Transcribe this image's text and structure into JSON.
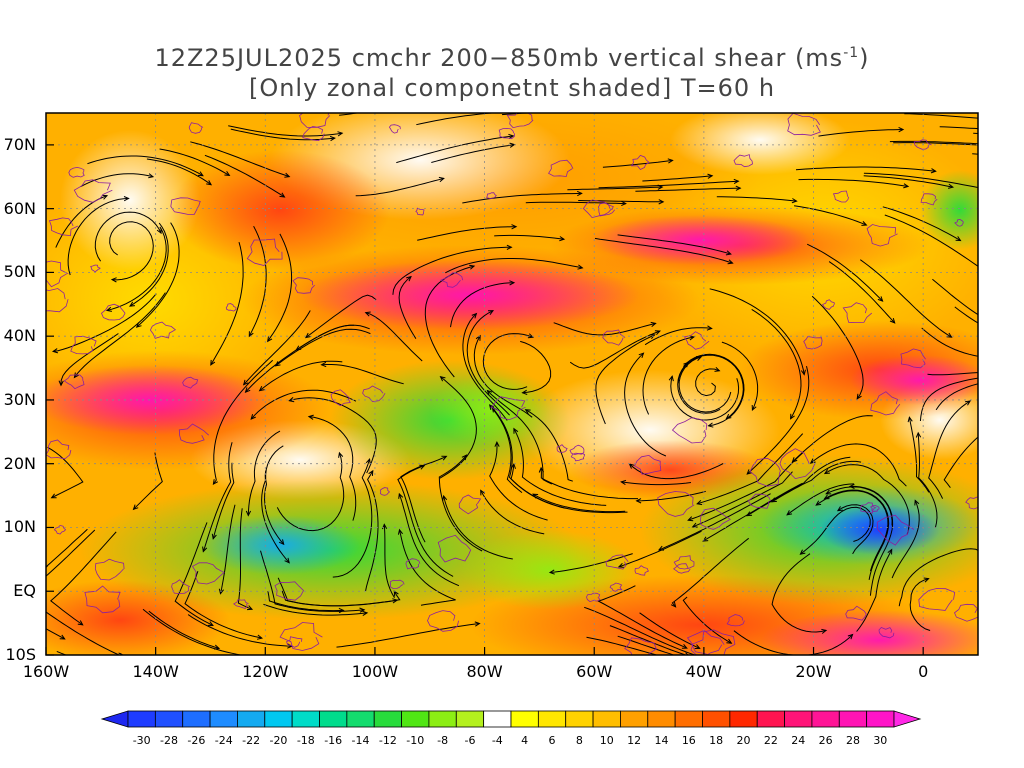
{
  "title": {
    "line1_prefix": "12Z25JUL2025 cmchr 200−850mb vertical shear (ms",
    "line1_sup": "-1",
    "line1_suffix": ")",
    "line2": "[Only zonal componetnt shaded] T=60 h"
  },
  "map": {
    "lon_range": [
      -160,
      10
    ],
    "lat_range": [
      -10,
      75
    ],
    "lat_labels": [
      "70N",
      "60N",
      "50N",
      "40N",
      "30N",
      "20N",
      "10N",
      "EQ",
      "10S"
    ],
    "lat_values": [
      70,
      60,
      50,
      40,
      30,
      20,
      10,
      0,
      -10
    ],
    "lon_labels": [
      "160W",
      "140W",
      "120W",
      "100W",
      "80W",
      "60W",
      "40W",
      "20W",
      "0"
    ],
    "lon_values": [
      -160,
      -140,
      -120,
      -100,
      -80,
      -60,
      -40,
      -20,
      0
    ],
    "shaded_field": "zonal component of 200-850mb vertical shear",
    "overlay": "streamlines of shear vector with arrowheads; purple contours",
    "grid": "dotted lat/lon lines"
  },
  "colorbar": {
    "labels": [
      "-30",
      "-28",
      "-26",
      "-24",
      "-22",
      "-20",
      "-18",
      "-16",
      "-14",
      "-12",
      "-10",
      "-8",
      "-6",
      "-4",
      "4",
      "6",
      "8",
      "10",
      "12",
      "14",
      "16",
      "18",
      "20",
      "22",
      "24",
      "26",
      "28",
      "30"
    ],
    "colors": [
      "#1e3cff",
      "#2050ff",
      "#1e6eff",
      "#1e8cff",
      "#14aaf0",
      "#00c8f0",
      "#00dcc8",
      "#00dc8c",
      "#14dc6e",
      "#28dc3c",
      "#50e614",
      "#8cee14",
      "#b4f01e",
      "#ffffff",
      "#ffff00",
      "#ffe600",
      "#ffd200",
      "#ffbe00",
      "#ffa000",
      "#ff8c00",
      "#ff6e00",
      "#ff5000",
      "#ff2800",
      "#ff1450",
      "#ff1478",
      "#ff1496",
      "#ff14b4",
      "#ff14c8"
    ],
    "extend_low_color": "#1e28f0",
    "extend_high_color": "#ff28e6"
  }
}
